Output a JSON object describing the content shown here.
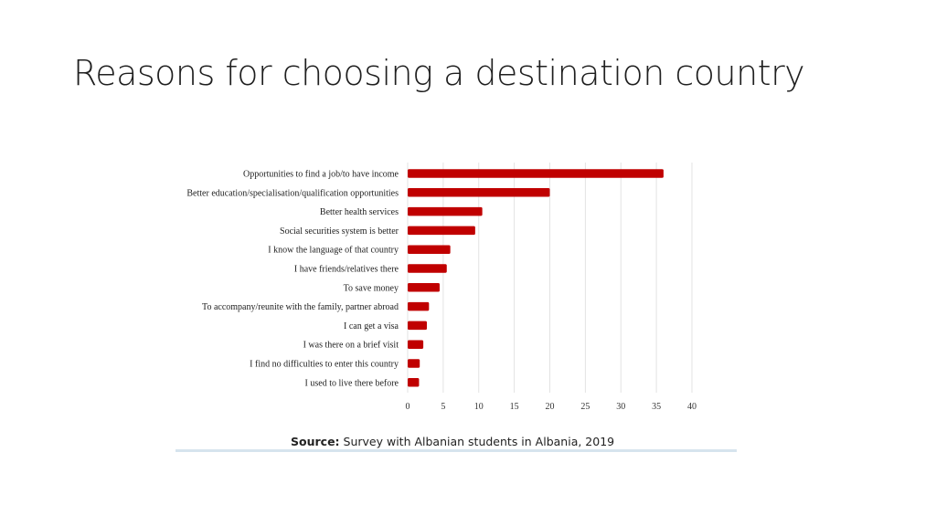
{
  "slide": {
    "title": "Reasons for choosing a destination country"
  },
  "source": {
    "label": "Source:",
    "text": " Survey with Albanian students in Albania, 2019"
  },
  "chart_data": {
    "type": "bar",
    "orientation": "horizontal",
    "categories": [
      "Opportunities to find a job/to have income",
      "Better education/specialisation/qualification opportunities",
      "Better health services",
      "Social securities system is better",
      "I know the language of that country",
      "I have friends/relatives there",
      "To save money",
      "To accompany/reunite with the family, partner abroad",
      "I can get a visa",
      "I was there on a brief visit",
      "I find no difficulties to enter this country",
      "I used to live there before"
    ],
    "values": [
      36,
      20,
      10.5,
      9.5,
      6,
      5.5,
      4.5,
      3,
      2.7,
      2.2,
      1.7,
      1.6
    ],
    "xlim": [
      0,
      40
    ],
    "xticks": [
      0,
      5,
      10,
      15,
      20,
      25,
      30,
      35,
      40
    ],
    "bar_color": "#c00000",
    "grid": true,
    "title": "",
    "xlabel": "",
    "ylabel": ""
  }
}
